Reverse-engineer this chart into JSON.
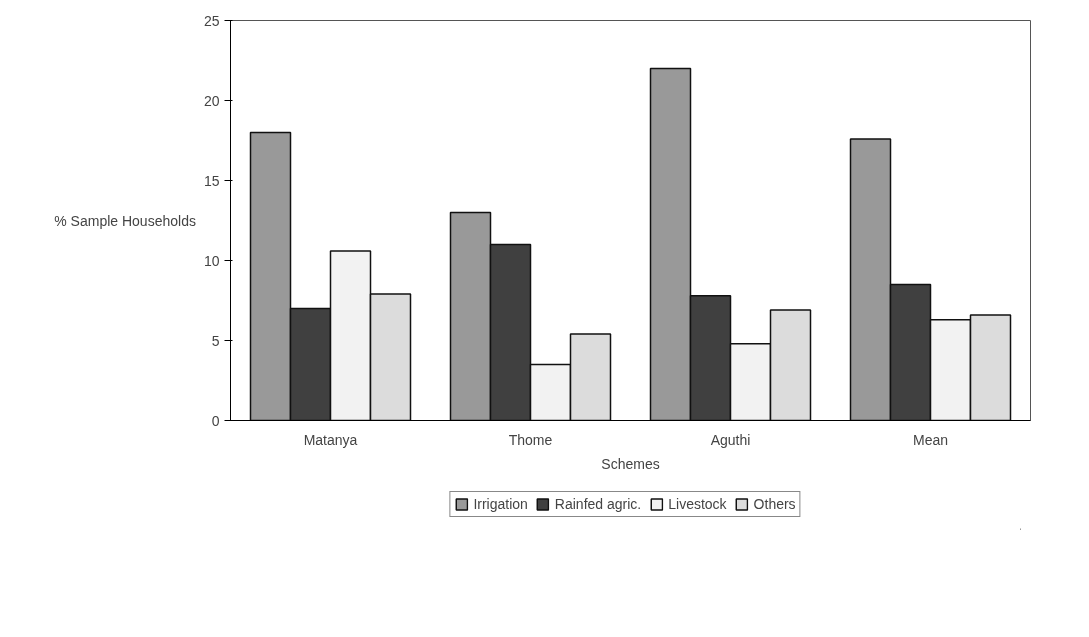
{
  "chart_data": {
    "type": "bar",
    "xlabel": "Schemes",
    "ylabel": "% Sample Households",
    "categories": [
      "Matanya",
      "Thome",
      "Aguthi",
      "Mean"
    ],
    "series": [
      {
        "name": "Irrigation",
        "color": "#999999",
        "values": [
          18,
          13,
          22,
          17.6
        ]
      },
      {
        "name": "Rainfed agric.",
        "color": "#404040",
        "values": [
          7,
          11,
          7.8,
          8.5
        ]
      },
      {
        "name": "Livestock",
        "color": "#f2f2f2",
        "values": [
          10.6,
          3.5,
          4.8,
          6.3
        ]
      },
      {
        "name": "Others",
        "color": "#dcdcdc",
        "values": [
          7.9,
          5.4,
          6.9,
          6.6
        ]
      }
    ],
    "ylim": [
      0,
      25
    ],
    "yticks": [
      0,
      5,
      10,
      15,
      20,
      25
    ],
    "grid": false,
    "legend": "bottom"
  }
}
